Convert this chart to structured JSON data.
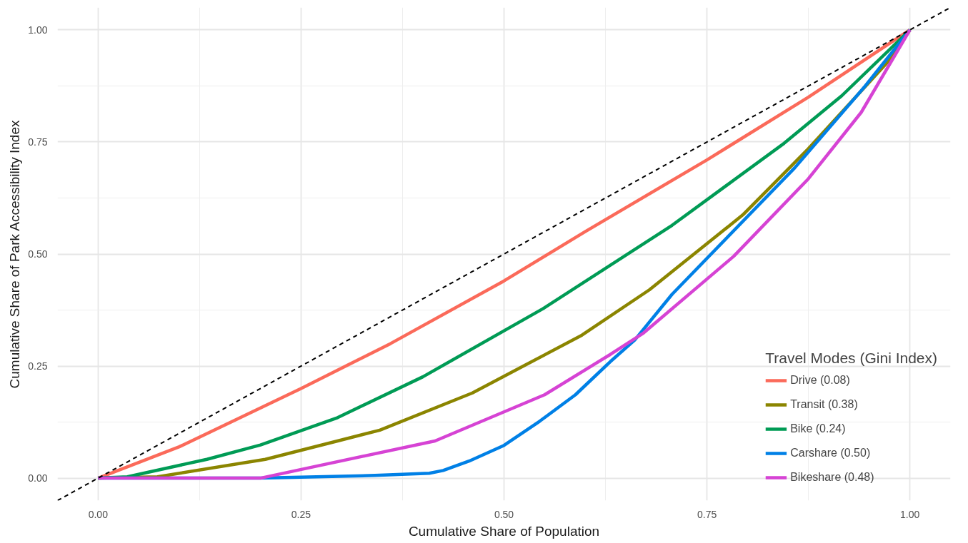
{
  "chart_data": {
    "type": "line",
    "xlabel": "Cumulative Share of Population",
    "ylabel": "Cumulative Share of Park Accessibility Index",
    "legend_title": "Travel Modes (Gini Index)",
    "xlim": [
      -0.05,
      1.05
    ],
    "ylim": [
      -0.05,
      1.05
    ],
    "xticks": [
      {
        "value": 0,
        "label": "0.00"
      },
      {
        "value": 0.25,
        "label": "0.25"
      },
      {
        "value": 0.5,
        "label": "0.50"
      },
      {
        "value": 0.75,
        "label": "0.75"
      },
      {
        "value": 1,
        "label": "1.00"
      }
    ],
    "yticks": [
      {
        "value": 0,
        "label": "0.00"
      },
      {
        "value": 0.25,
        "label": "0.25"
      },
      {
        "value": 0.5,
        "label": "0.50"
      },
      {
        "value": 0.75,
        "label": "0.75"
      },
      {
        "value": 1,
        "label": "1.00"
      }
    ],
    "grid": true,
    "legend": "bottom right",
    "marker": "none",
    "line_style": "solid",
    "series": [
      {
        "name": "Drive (0.08)",
        "color": "#fb6a5a",
        "x": [
          0,
          0.1,
          0.25,
          0.36,
          0.5,
          0.6,
          0.75,
          0.875,
          1
        ],
        "values": [
          0,
          0.07,
          0.2,
          0.3,
          0.44,
          0.55,
          0.71,
          0.85,
          1
        ]
      },
      {
        "name": "Transit (0.38)",
        "color": "#8b8500",
        "x": [
          0,
          0.073,
          0.206,
          0.295,
          0.347,
          0.461,
          0.596,
          0.679,
          0.794,
          0.875,
          0.975,
          1
        ],
        "values": [
          0,
          0.003,
          0.042,
          0.083,
          0.107,
          0.19,
          0.319,
          0.42,
          0.587,
          0.735,
          0.933,
          1
        ]
      },
      {
        "name": "Bike (0.24)",
        "color": "#009b55",
        "x": [
          0,
          0.036,
          0.134,
          0.2,
          0.295,
          0.4,
          0.548,
          0.707,
          0.845,
          0.916,
          1
        ],
        "values": [
          0,
          0.003,
          0.042,
          0.074,
          0.135,
          0.226,
          0.378,
          0.564,
          0.747,
          0.853,
          1
        ]
      },
      {
        "name": "Carshare (0.50)",
        "color": "#0080e6",
        "x": [
          0,
          0.2,
          0.341,
          0.408,
          0.425,
          0.457,
          0.5,
          0.544,
          0.588,
          0.631,
          0.661,
          0.707,
          0.858,
          0.945,
          1
        ],
        "values": [
          0,
          0,
          0.006,
          0.011,
          0.017,
          0.038,
          0.073,
          0.127,
          0.186,
          0.26,
          0.308,
          0.41,
          0.692,
          0.875,
          1
        ]
      },
      {
        "name": "Bikeshare (0.48)",
        "color": "#d643d4",
        "x": [
          0,
          0.2,
          0.415,
          0.55,
          0.631,
          0.672,
          0.783,
          0.875,
          0.94,
          1
        ],
        "values": [
          0,
          0,
          0.083,
          0.186,
          0.276,
          0.324,
          0.495,
          0.668,
          0.816,
          1
        ]
      },
      {
        "color": "#000000",
        "line_style": "dashed",
        "x": [
          -0.05,
          1.05
        ],
        "values": [
          -0.05,
          1.05
        ]
      }
    ]
  }
}
